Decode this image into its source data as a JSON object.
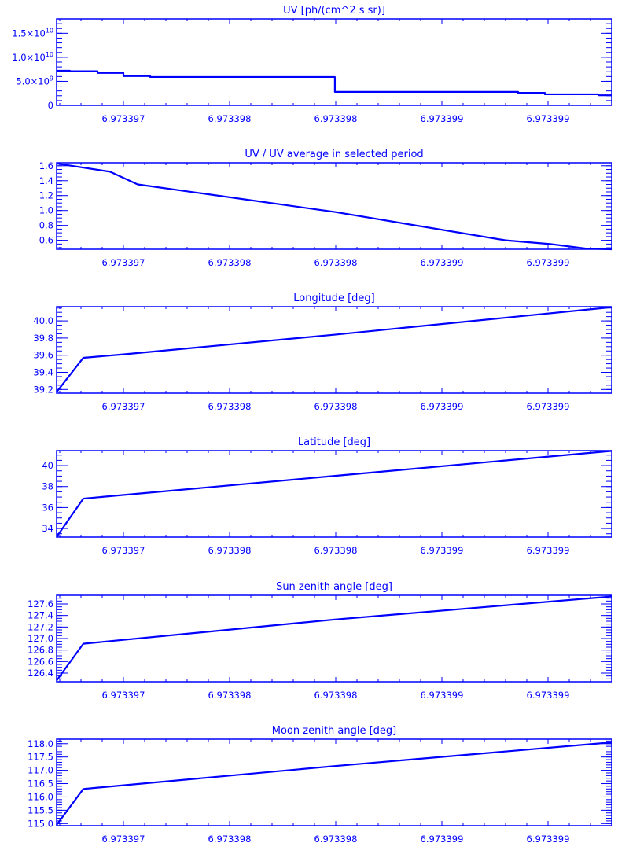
{
  "colors": {
    "line": "#0000ff",
    "axes": "#0000ff",
    "background": "#ffffff"
  },
  "x_axis": {
    "xlim": [
      6.9733966852,
      6.9733993
    ],
    "ticks": [
      6.973397,
      6.9733975,
      6.973398,
      6.9733985,
      6.973399
    ],
    "tick_labels": [
      "6.973397",
      "6.973398",
      "6.973398",
      "6.973399",
      "6.973399"
    ],
    "minor_step": 1e-07
  },
  "chart_data": [
    {
      "type": "line",
      "step": true,
      "title": "UV [ph/(cm^2 s sr)]",
      "ylim": [
        0,
        18000000000
      ],
      "yticks": [
        {
          "value": 0,
          "mantissa": "0",
          "exp": ""
        },
        {
          "value": 5000000000,
          "mantissa": "5.0×10",
          "exp": "9"
        },
        {
          "value": 10000000000,
          "mantissa": "1.0×10",
          "exp": "10"
        },
        {
          "value": 15000000000,
          "mantissa": "1.5×10",
          "exp": "10"
        }
      ],
      "yminor_step": 1000000000,
      "x": [
        6.9733966852,
        6.973396748,
        6.973396878,
        6.973397,
        6.973397126,
        6.973397996,
        6.973398859,
        6.973398985,
        6.973399237,
        6.9733993
      ],
      "y": [
        7200000000,
        7100000000,
        6750000000,
        6100000000,
        5900000000,
        2800000000,
        2600000000,
        2300000000,
        2100000000,
        2100000000
      ]
    },
    {
      "type": "line",
      "title": "UV / UV average in selected period",
      "ylim": [
        0.48,
        1.64
      ],
      "yticks": [
        {
          "value": 0.6,
          "mantissa": "0.6",
          "exp": ""
        },
        {
          "value": 0.8,
          "mantissa": "0.8",
          "exp": ""
        },
        {
          "value": 1.0,
          "mantissa": "1.0",
          "exp": ""
        },
        {
          "value": 1.2,
          "mantissa": "1.2",
          "exp": ""
        },
        {
          "value": 1.4,
          "mantissa": "1.4",
          "exp": ""
        },
        {
          "value": 1.6,
          "mantissa": "1.6",
          "exp": ""
        }
      ],
      "yminor_step": 0.05,
      "x": [
        6.9733966852,
        6.973396937,
        6.973397067,
        6.973397996,
        6.9733988,
        6.973399011,
        6.973399178,
        6.9733993
      ],
      "y": [
        1.63,
        1.52,
        1.35,
        0.98,
        0.6,
        0.55,
        0.49,
        0.48
      ]
    },
    {
      "type": "line",
      "title": "Longitude [deg]",
      "ylim": [
        39.157,
        40.166
      ],
      "yticks": [
        {
          "value": 39.2,
          "mantissa": "39.2",
          "exp": ""
        },
        {
          "value": 39.4,
          "mantissa": "39.4",
          "exp": ""
        },
        {
          "value": 39.6,
          "mantissa": "39.6",
          "exp": ""
        },
        {
          "value": 39.8,
          "mantissa": "39.8",
          "exp": ""
        },
        {
          "value": 40.0,
          "mantissa": "40.0",
          "exp": ""
        }
      ],
      "yminor_step": 0.05,
      "x": [
        6.9733966852,
        6.973396811,
        6.973397,
        6.973397996,
        6.9733993
      ],
      "y": [
        39.17,
        39.57,
        39.61,
        39.84,
        40.16
      ]
    },
    {
      "type": "line",
      "title": "Latitude [deg]",
      "ylim": [
        33.18,
        41.43
      ],
      "yticks": [
        {
          "value": 34,
          "mantissa": "34",
          "exp": ""
        },
        {
          "value": 36,
          "mantissa": "36",
          "exp": ""
        },
        {
          "value": 38,
          "mantissa": "38",
          "exp": ""
        },
        {
          "value": 40,
          "mantissa": "40",
          "exp": ""
        }
      ],
      "yminor_step": 0.5,
      "x": [
        6.9733966852,
        6.973396811,
        6.973397996,
        6.9733993
      ],
      "y": [
        33.2,
        36.85,
        39.02,
        41.4
      ]
    },
    {
      "type": "line",
      "title": "Sun zenith angle [deg]",
      "ylim": [
        126.25,
        127.75
      ],
      "yticks": [
        {
          "value": 126.4,
          "mantissa": "126.4",
          "exp": ""
        },
        {
          "value": 126.6,
          "mantissa": "126.6",
          "exp": ""
        },
        {
          "value": 126.8,
          "mantissa": "126.8",
          "exp": ""
        },
        {
          "value": 127.0,
          "mantissa": "127.0",
          "exp": ""
        },
        {
          "value": 127.2,
          "mantissa": "127.2",
          "exp": ""
        },
        {
          "value": 127.4,
          "mantissa": "127.4",
          "exp": ""
        },
        {
          "value": 127.6,
          "mantissa": "127.6",
          "exp": ""
        }
      ],
      "yminor_step": 0.05,
      "x": [
        6.9733966852,
        6.973396811,
        6.973397996,
        6.9733993
      ],
      "y": [
        126.27,
        126.91,
        127.33,
        127.73
      ]
    },
    {
      "type": "line",
      "title": "Moon zenith angle [deg]",
      "ylim": [
        114.92,
        118.17
      ],
      "yticks": [
        {
          "value": 115.0,
          "mantissa": "115.0",
          "exp": ""
        },
        {
          "value": 115.5,
          "mantissa": "115.5",
          "exp": ""
        },
        {
          "value": 116.0,
          "mantissa": "116.0",
          "exp": ""
        },
        {
          "value": 116.5,
          "mantissa": "116.5",
          "exp": ""
        },
        {
          "value": 117.0,
          "mantissa": "117.0",
          "exp": ""
        },
        {
          "value": 117.5,
          "mantissa": "117.5",
          "exp": ""
        },
        {
          "value": 118.0,
          "mantissa": "118.0",
          "exp": ""
        }
      ],
      "yminor_step": 0.1,
      "x": [
        6.9733966852,
        6.973396811,
        6.973397996,
        6.9733993
      ],
      "y": [
        114.95,
        116.3,
        117.16,
        118.05
      ]
    }
  ]
}
